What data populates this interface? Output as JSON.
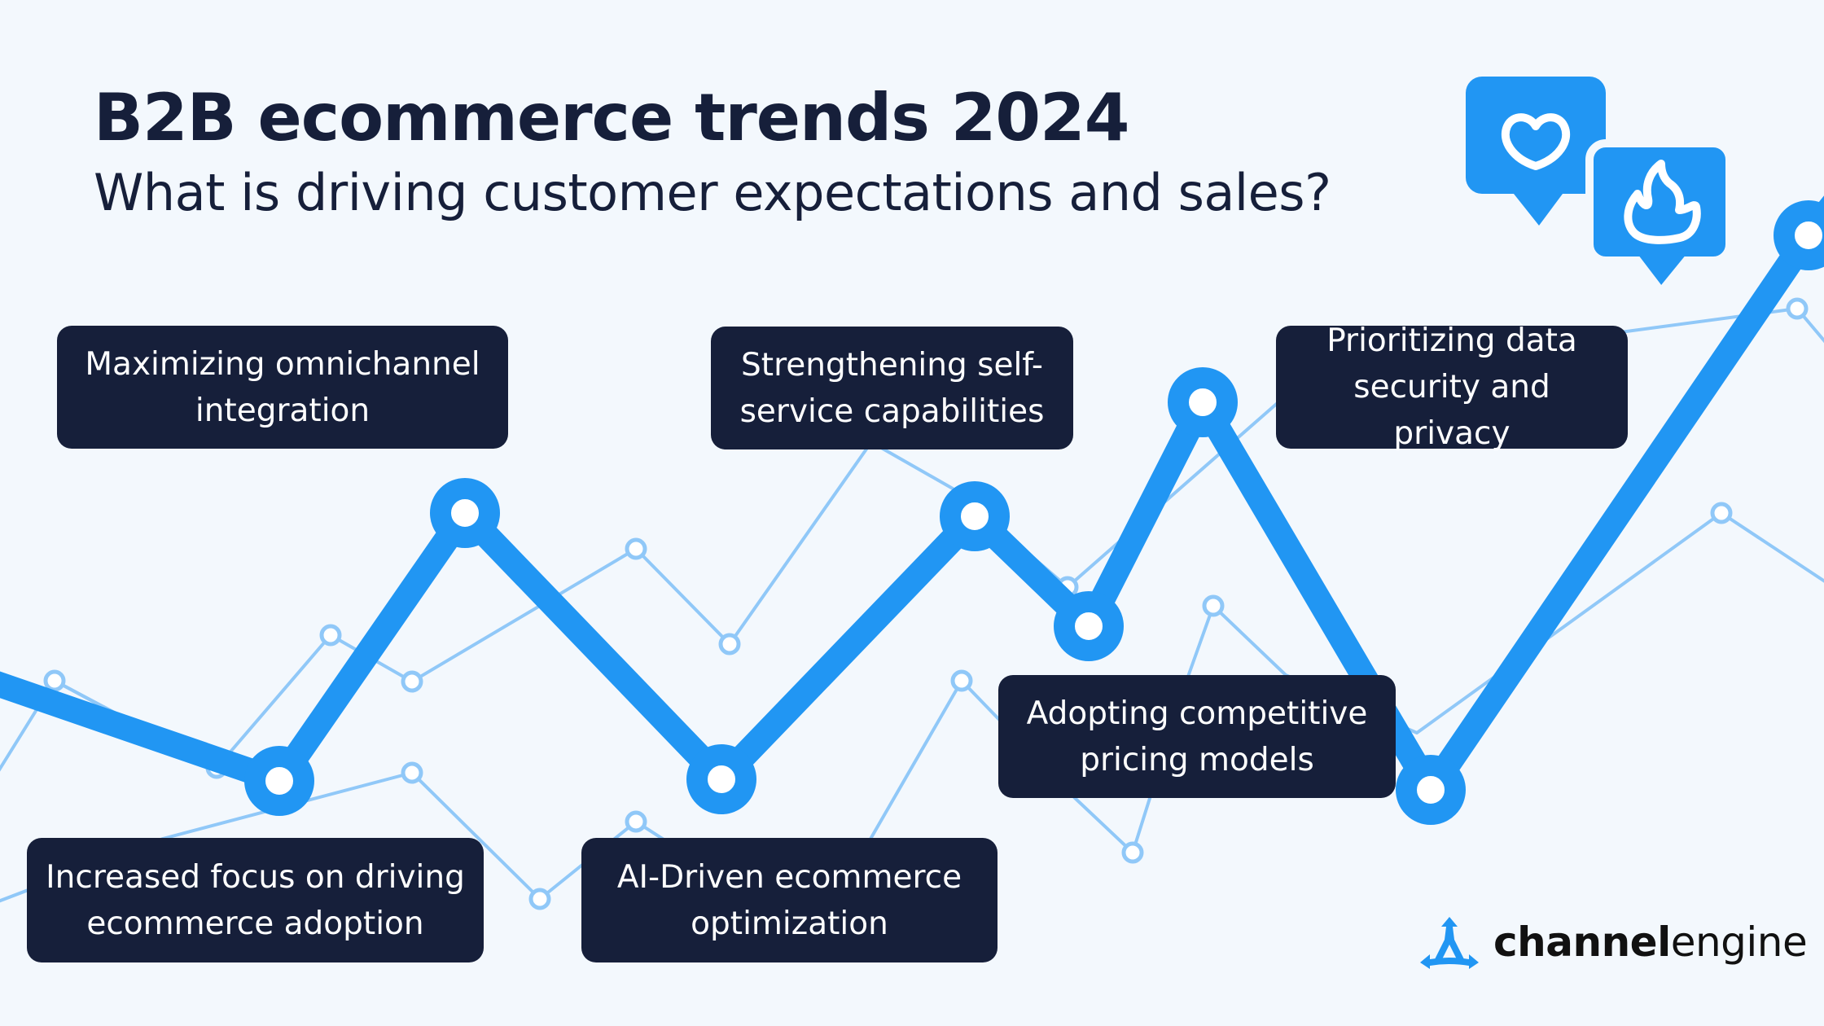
{
  "header": {
    "title": "B2B ecommerce trends 2024",
    "subtitle": "What is driving customer expectations and sales?"
  },
  "trends": [
    {
      "label": "Maximizing omnichannel integration"
    },
    {
      "label": "Strengthening self-service capabilities"
    },
    {
      "label": "Prioritizing data security and privacy"
    },
    {
      "label": "Increased focus on driving ecommerce adoption"
    },
    {
      "label": "AI-Driven ecommerce optimization"
    },
    {
      "label": "Adopting competitive pricing models"
    }
  ],
  "icons": [
    "heart-icon",
    "fire-icon"
  ],
  "logo": {
    "bold": "channel",
    "regular": "engine"
  },
  "colors": {
    "background": "#f3f8fd",
    "accent": "#2196f3",
    "accent_light": "#90c8f8",
    "card": "#161f3a"
  }
}
